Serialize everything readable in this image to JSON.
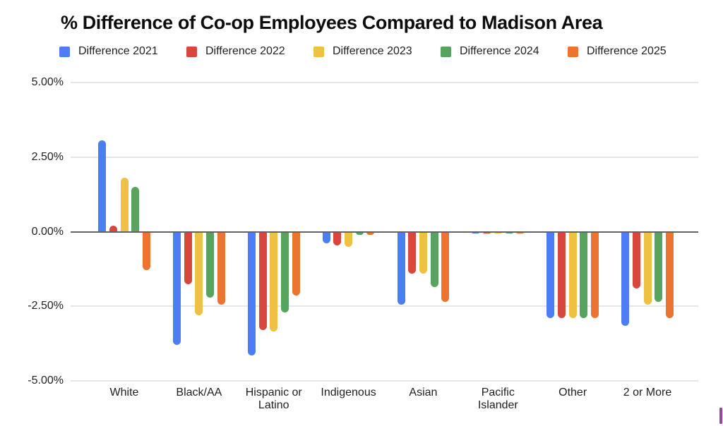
{
  "chart_data": {
    "type": "bar",
    "title": "% Difference of Co-op Employees Compared to Madison Area",
    "categories": [
      "White",
      "Black/AA",
      "Hispanic or Latino",
      "Indigenous",
      "Asian",
      "Pacific Islander",
      "Other",
      "2 or More"
    ],
    "series": [
      {
        "name": "Difference 2021",
        "color": "#4d7df2",
        "values": [
          3.05,
          -3.8,
          -4.15,
          -0.4,
          -2.45,
          -0.05,
          -2.9,
          -3.15
        ]
      },
      {
        "name": "Difference 2022",
        "color": "#d8473c",
        "values": [
          0.2,
          -1.75,
          -3.3,
          -0.45,
          -1.4,
          -0.05,
          -2.9,
          -1.9
        ]
      },
      {
        "name": "Difference 2023",
        "color": "#eec143",
        "values": [
          1.8,
          -2.8,
          -3.35,
          -0.5,
          -1.4,
          -0.05,
          -2.9,
          -2.45
        ]
      },
      {
        "name": "Difference 2024",
        "color": "#57a45f",
        "values": [
          1.5,
          -2.2,
          -2.7,
          -0.1,
          -1.85,
          -0.05,
          -2.9,
          -2.35
        ]
      },
      {
        "name": "Difference 2025",
        "color": "#ed7430",
        "values": [
          -1.3,
          -2.45,
          -2.15,
          -0.1,
          -2.35,
          -0.05,
          -2.9,
          -2.9
        ]
      }
    ],
    "y_ticks": [
      "5.00%",
      "2.50%",
      "0.00%",
      "-2.50%",
      "-5.00%"
    ],
    "ylim": [
      -5,
      5
    ],
    "xlabel": "",
    "ylabel": "",
    "grid": true,
    "legend_position": "top"
  },
  "colors": {
    "gridline": "#e6e6e6",
    "zero_line": "#636363",
    "title_text": "#0d0d0d",
    "axis_text": "#222222",
    "background": "#ffffff",
    "edge_artifact": "#91499c"
  }
}
